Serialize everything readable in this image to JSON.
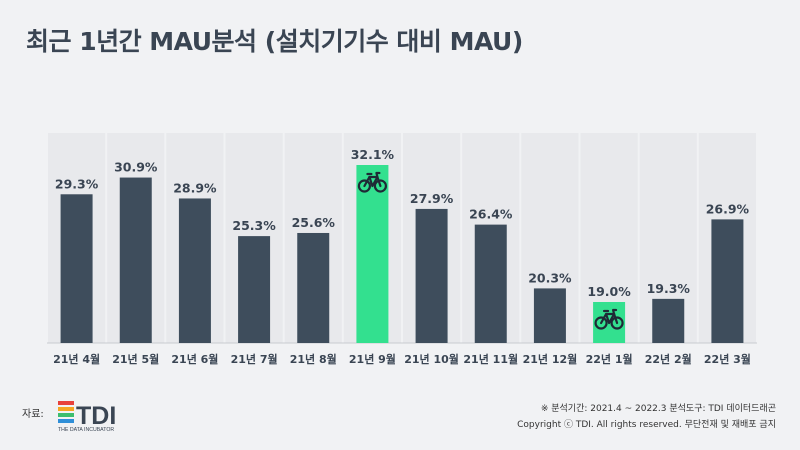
{
  "title": "최근 1년간 MAU분석 (설치기기수 대비 MAU)",
  "chart_data": {
    "type": "bar",
    "categories": [
      "21년 4월",
      "21년 5월",
      "21년 6월",
      "21년 7월",
      "21년 8월",
      "21년 9월",
      "21년 10월",
      "21년 11월",
      "21년 12월",
      "22년 1월",
      "22년 2월",
      "22년 3월"
    ],
    "values": [
      29.3,
      30.9,
      28.9,
      25.3,
      25.6,
      32.1,
      27.9,
      26.4,
      20.3,
      19.0,
      19.3,
      26.9
    ],
    "value_labels": [
      "29.3%",
      "30.9%",
      "28.9%",
      "25.3%",
      "25.6%",
      "32.1%",
      "27.9%",
      "26.4%",
      "20.3%",
      "19.0%",
      "19.3%",
      "26.9%"
    ],
    "highlighted": [
      "21년 9월",
      "22년 1월"
    ],
    "highlight_icon": "bicycle-icon",
    "colors": {
      "bar": "#3e4d5c",
      "highlight": "#33e08f",
      "column_bg": "#e8e9ec"
    },
    "ylim": [
      0,
      36
    ],
    "grid": false,
    "legend": "none"
  },
  "footer": {
    "source_label": "자료:",
    "logo_text": "TDI",
    "logo_subtext": "THE DATA INCUBATOR",
    "period": "※ 분석기간: 2021.4 ~ 2022.3   분석도구: TDI 데이터드래곤",
    "copyright": "Copyright ⓒ TDI. All rights reserved. 무단전재 및 재배포 금지"
  }
}
